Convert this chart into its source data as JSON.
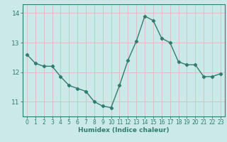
{
  "x": [
    0,
    1,
    2,
    3,
    4,
    5,
    6,
    7,
    8,
    9,
    10,
    11,
    12,
    13,
    14,
    15,
    16,
    17,
    18,
    19,
    20,
    21,
    22,
    23
  ],
  "y": [
    12.6,
    12.3,
    12.2,
    12.2,
    11.85,
    11.55,
    11.45,
    11.35,
    11.0,
    10.85,
    10.8,
    11.55,
    12.4,
    13.05,
    13.9,
    13.75,
    13.15,
    13.0,
    12.35,
    12.25,
    12.25,
    11.85,
    11.85,
    11.95
  ],
  "line_color": "#2e7d6e",
  "marker": "D",
  "marker_size": 2.2,
  "bg_color": "#cce9e9",
  "axis_color": "#2e7d6e",
  "xlabel": "Humidex (Indice chaleur)",
  "ylim": [
    10.5,
    14.3
  ],
  "xlim": [
    -0.5,
    23.5
  ],
  "yticks": [
    11,
    12,
    13,
    14
  ],
  "xticks": [
    0,
    1,
    2,
    3,
    4,
    5,
    6,
    7,
    8,
    9,
    10,
    11,
    12,
    13,
    14,
    15,
    16,
    17,
    18,
    19,
    20,
    21,
    22,
    23
  ],
  "xlabel_color": "#2e7d6e",
  "tick_color": "#2e7d6e",
  "spine_color": "#2e7d6e",
  "grid_major_x_color": "#ddbbbb",
  "grid_major_y_color": "#ddbbbb",
  "linewidth": 1.0
}
